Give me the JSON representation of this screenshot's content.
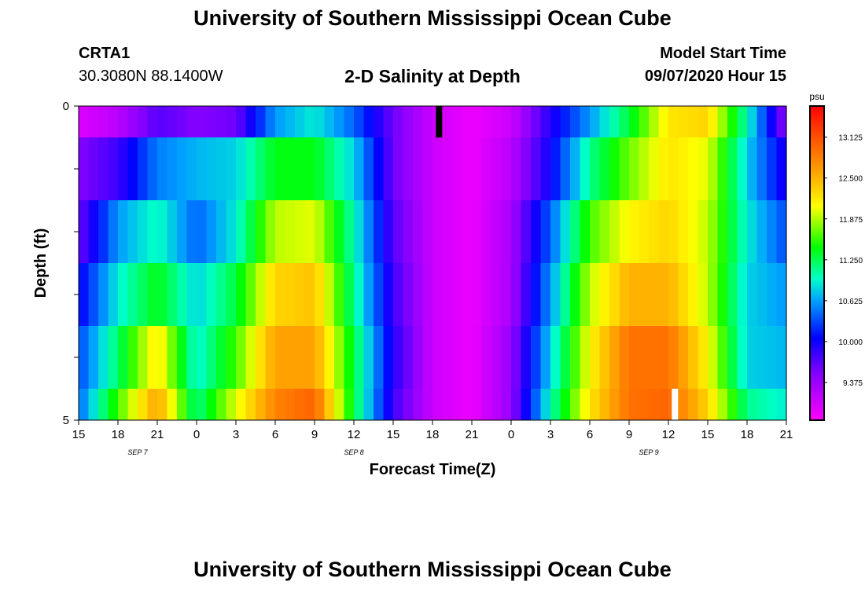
{
  "header": {
    "title": "University of Southern Mississippi Ocean Cube",
    "station_id": "CRTA1",
    "station_coords": "30.3080N 88.1400W",
    "plot_title": "2-D Salinity at Depth",
    "model_start_label": "Model Start Time",
    "model_start_value": "09/07/2020 Hour 15"
  },
  "footer": {
    "title": "University of Southern Mississippi Ocean Cube"
  },
  "chart_data": {
    "type": "heatmap",
    "title": "2-D Salinity at Depth",
    "xlabel": "Forecast Time(Z)",
    "ylabel": "Depth (ft)",
    "ylim": [
      0,
      5
    ],
    "y_tick_labels": [
      "0",
      "5"
    ],
    "x_hours_start": 15,
    "x_hours_end": 69,
    "x_tick_labels": [
      "15",
      "18",
      "21",
      "0",
      "3",
      "6",
      "9",
      "12",
      "15",
      "18",
      "21",
      "0",
      "3",
      "6",
      "9",
      "12",
      "15",
      "18",
      "21"
    ],
    "date_labels": [
      {
        "text": "SEP 7",
        "hour": 19.5
      },
      {
        "text": "SEP 8",
        "hour": 36
      },
      {
        "text": "SEP 9",
        "hour": 58.5
      }
    ],
    "colorbar": {
      "unit": "psu",
      "min": 8.8,
      "max": 13.6,
      "ticks": [
        "13.125",
        "12.500",
        "11.875",
        "11.250",
        "10.625",
        "10.000",
        "9.375"
      ]
    },
    "depth_layers": [
      {
        "depth_range": [
          0,
          0.5
        ],
        "hours": [
          15,
          18,
          21,
          24,
          27,
          30,
          33,
          36,
          39,
          42,
          45,
          48,
          51,
          54,
          57,
          60,
          63,
          66,
          69
        ],
        "values": [
          9.0,
          9.2,
          9.7,
          9.5,
          9.6,
          10.6,
          10.9,
          10.4,
          9.6,
          9.1,
          8.9,
          9.1,
          9.9,
          10.6,
          11.3,
          12.2,
          12.3,
          11.0,
          9.4
        ]
      },
      {
        "depth_range": [
          0.5,
          1.5
        ],
        "hours": [
          15,
          18,
          21,
          24,
          27,
          30,
          33,
          36,
          39,
          42,
          45,
          48,
          51,
          54,
          57,
          60,
          63,
          66,
          69
        ],
        "values": [
          9.5,
          9.8,
          10.5,
          10.7,
          10.8,
          11.4,
          11.4,
          10.8,
          9.6,
          9.1,
          8.9,
          9.2,
          10.0,
          11.1,
          11.7,
          12.2,
          12.0,
          10.8,
          9.9
        ]
      },
      {
        "depth_range": [
          1.5,
          2.5
        ],
        "hours": [
          15,
          18,
          21,
          24,
          27,
          30,
          33,
          36,
          39,
          42,
          45,
          48,
          51,
          54,
          57,
          60,
          63,
          66,
          69
        ],
        "values": [
          9.6,
          10.6,
          11.0,
          10.4,
          10.9,
          11.9,
          12.0,
          11.0,
          9.7,
          9.1,
          8.9,
          9.3,
          10.4,
          11.6,
          12.1,
          12.3,
          11.9,
          10.9,
          10.3
        ]
      },
      {
        "depth_range": [
          2.5,
          3.5
        ],
        "hours": [
          15,
          18,
          21,
          24,
          27,
          30,
          33,
          36,
          39,
          42,
          45,
          48,
          51,
          54,
          57,
          60,
          63,
          66,
          69
        ],
        "values": [
          10.0,
          10.9,
          11.4,
          10.8,
          11.3,
          12.3,
          12.4,
          11.1,
          9.8,
          9.1,
          8.9,
          9.3,
          10.6,
          11.9,
          12.5,
          12.5,
          11.9,
          10.8,
          10.6
        ]
      },
      {
        "depth_range": [
          3.5,
          4.5
        ],
        "hours": [
          15,
          18,
          21,
          24,
          27,
          30,
          33,
          36,
          39,
          42,
          45,
          48,
          51,
          54,
          57,
          60,
          63,
          66,
          69
        ],
        "values": [
          10.3,
          11.2,
          12.2,
          10.9,
          11.6,
          12.6,
          12.6,
          11.3,
          9.9,
          9.1,
          8.9,
          9.4,
          10.8,
          12.1,
          12.9,
          12.9,
          12.1,
          10.8,
          10.7
        ]
      },
      {
        "depth_range": [
          4.5,
          5.0
        ],
        "hours": [
          15,
          18,
          21,
          24,
          27,
          30,
          33,
          36,
          39,
          42,
          45,
          48,
          51,
          54,
          57,
          60,
          63,
          66,
          69
        ],
        "values": [
          10.4,
          11.6,
          12.6,
          11.1,
          12.0,
          12.8,
          13.0,
          11.3,
          9.8,
          9.1,
          8.9,
          9.4,
          11.0,
          12.2,
          12.9,
          13.0,
          12.3,
          11.1,
          10.9
        ]
      }
    ],
    "markers": [
      {
        "color": "#000000",
        "hour": 42.5,
        "depth_from": 0,
        "depth_to": 0.5
      },
      {
        "color": "#ffffff",
        "hour": 60.5,
        "depth_from": 4.5,
        "depth_to": 5.0
      }
    ]
  }
}
